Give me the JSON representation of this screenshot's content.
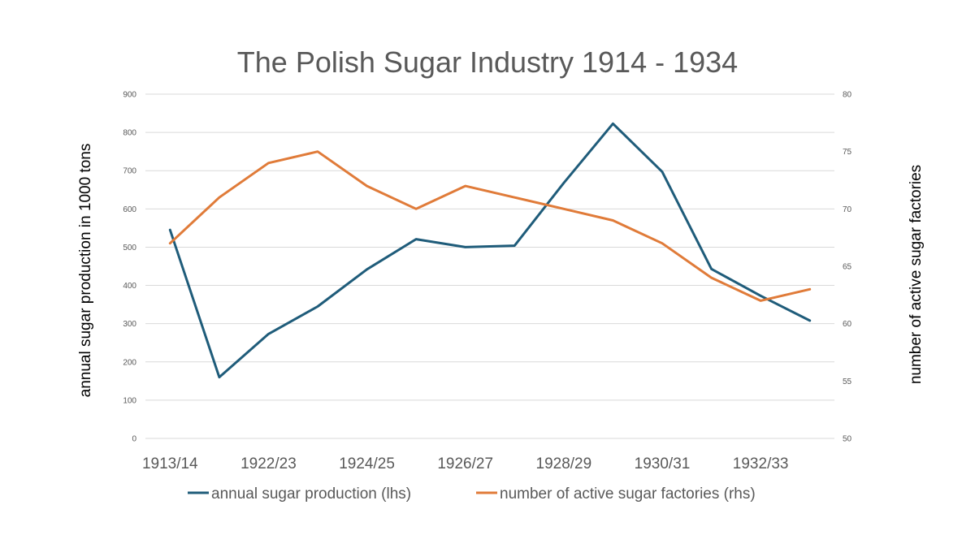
{
  "chart_data": {
    "type": "line",
    "title": "The Polish Sugar Industry 1914 - 1934",
    "ylabel_left": "annual sugar production in 1000 tons",
    "ylabel_right": "number of active sugar factories",
    "xlabel": "",
    "x_tick_labels": [
      "1913/14",
      "1922/23",
      "1924/25",
      "1926/27",
      "1928/29",
      "1930/31",
      "1932/33"
    ],
    "ylim_left": [
      0,
      900
    ],
    "y_ticks_left": [
      "0",
      "100",
      "200",
      "300",
      "400",
      "500",
      "600",
      "700",
      "800",
      "900"
    ],
    "ylim_right": [
      50,
      80
    ],
    "y_ticks_right": [
      "50",
      "55",
      "60",
      "65",
      "70",
      "75",
      "80"
    ],
    "grid": true,
    "legend_position": "bottom",
    "series": [
      {
        "name": "annual sugar production (lhs)",
        "axis": "left",
        "color": "#1f5c7a",
        "values": [
          545,
          160,
          273,
          345,
          442,
          521,
          500,
          504,
          668,
          823,
          697,
          443,
          373,
          308
        ]
      },
      {
        "name": "number of active sugar factories (rhs)",
        "axis": "right",
        "color": "#e07b39",
        "values": [
          67,
          71,
          74,
          75,
          72,
          70,
          72,
          71,
          70,
          69,
          67,
          64,
          62,
          63
        ]
      }
    ]
  }
}
